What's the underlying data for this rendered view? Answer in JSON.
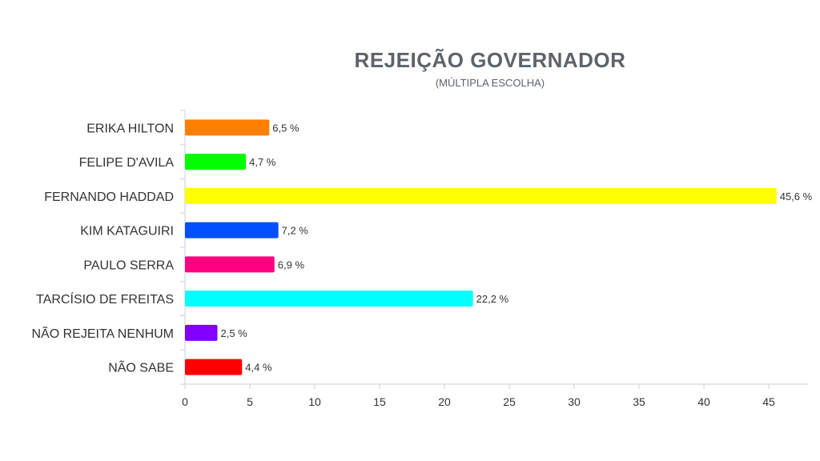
{
  "chart_data": {
    "type": "bar",
    "orientation": "horizontal",
    "title": "REJEIÇÃO GOVERNADOR",
    "subtitle": "(MÚLTIPLA ESCOLHA)",
    "categories": [
      "ERIKA HILTON",
      "FELIPE D'AVILA",
      "FERNANDO HADDAD",
      "KIM KATAGUIRI",
      "PAULO SERRA",
      "TARCÍSIO DE FREITAS",
      "NÃO REJEITA NENHUM",
      "NÃO SABE"
    ],
    "values": [
      6.5,
      4.7,
      45.6,
      7.2,
      6.9,
      22.2,
      2.5,
      4.4
    ],
    "value_labels": [
      "6,5 %",
      "4,7 %",
      "45,6 %",
      "7,2 %",
      "6,9 %",
      "22,2 %",
      "2,5 %",
      "4,4 %"
    ],
    "colors": [
      "#ff8000",
      "#00ff00",
      "#ffff00",
      "#0050ff",
      "#ff0080",
      "#00ffff",
      "#8000ff",
      "#ff0000"
    ],
    "xlim": [
      0,
      48
    ],
    "x_ticks": [
      0,
      5,
      10,
      15,
      20,
      25,
      30,
      35,
      40,
      45
    ],
    "grid": false,
    "legend": "none"
  }
}
